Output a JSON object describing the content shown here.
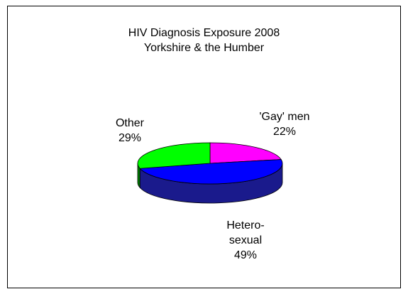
{
  "chart_data": {
    "type": "pie",
    "title": "HIV Diagnosis Exposure 2008",
    "subtitle": "Yorkshire & the Humber",
    "slices": [
      {
        "label": "'Gay' men",
        "value": 22,
        "value_label": "22%",
        "color": "#FF00FF",
        "side_color": "#800080"
      },
      {
        "label": "Hetero-sexual",
        "label_lines": [
          "Hetero-",
          "sexual"
        ],
        "value": 49,
        "value_label": "49%",
        "color": "#0000FF",
        "side_color": "#1A1A8C"
      },
      {
        "label": "Other",
        "value": 29,
        "value_label": "29%",
        "color": "#00FF00",
        "side_color": "#008000"
      }
    ],
    "style": "3d",
    "legend": "none"
  }
}
